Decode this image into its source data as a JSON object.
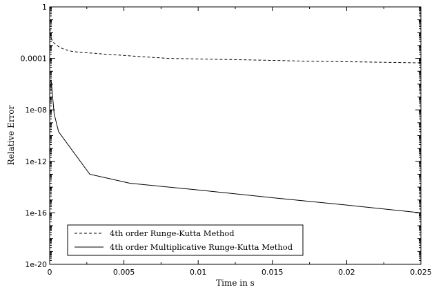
{
  "chart_data": {
    "type": "line",
    "xlabel": "Time in s",
    "ylabel": "Relative Error",
    "xlim": [
      0,
      0.025
    ],
    "ylim": [
      1e-20,
      1
    ],
    "yscale": "log",
    "grid": false,
    "legend_position": "bottom-left",
    "x_ticks": [
      {
        "value": 0,
        "label": "0"
      },
      {
        "value": 0.005,
        "label": "0.005"
      },
      {
        "value": 0.01,
        "label": "0.01"
      },
      {
        "value": 0.015,
        "label": "0.015"
      },
      {
        "value": 0.02,
        "label": "0.02"
      },
      {
        "value": 0.025,
        "label": "0.025"
      }
    ],
    "y_ticks": [
      {
        "value": 1,
        "label": "1"
      },
      {
        "value": 0.0001,
        "label": "0.0001"
      },
      {
        "value": 1e-08,
        "label": "1e-08"
      },
      {
        "value": 1e-12,
        "label": "1e-12"
      },
      {
        "value": 1e-16,
        "label": "1e-16"
      },
      {
        "value": 1e-20,
        "label": "1e-20"
      }
    ],
    "series": [
      {
        "name": "4th order Runge-Kutta Method",
        "style": "dashed",
        "color": "#000000",
        "x": [
          0,
          5e-05,
          0.0001,
          0.0002,
          0.0004,
          0.0007,
          0.001,
          0.0015,
          0.002,
          0.003,
          0.004,
          0.005,
          0.006,
          0.008,
          0.01,
          0.0125,
          0.015,
          0.0175,
          0.02,
          0.0225,
          0.025
        ],
        "y": [
          0.05,
          0.01,
          0.004,
          0.002,
          0.0012,
          0.0007,
          0.0005,
          0.00035,
          0.0003,
          0.00025,
          0.0002,
          0.00017,
          0.00014,
          0.0001,
          9e-05,
          8e-05,
          7e-05,
          6e-05,
          5.5e-05,
          5e-05,
          4.5e-05
        ]
      },
      {
        "name": "4th order Multiplicative Runge-Kutta Method",
        "style": "solid",
        "color": "#000000",
        "x": [
          0,
          0.0001,
          0.0002,
          0.0003,
          0.0006,
          0.0027,
          0.0054,
          0.01,
          0.015,
          0.02,
          0.025
        ],
        "y": [
          1e-06,
          2e-06,
          1e-07,
          5e-09,
          2e-10,
          1e-13,
          2e-14,
          6e-15,
          1.5e-15,
          4e-16,
          1e-16
        ]
      }
    ]
  }
}
